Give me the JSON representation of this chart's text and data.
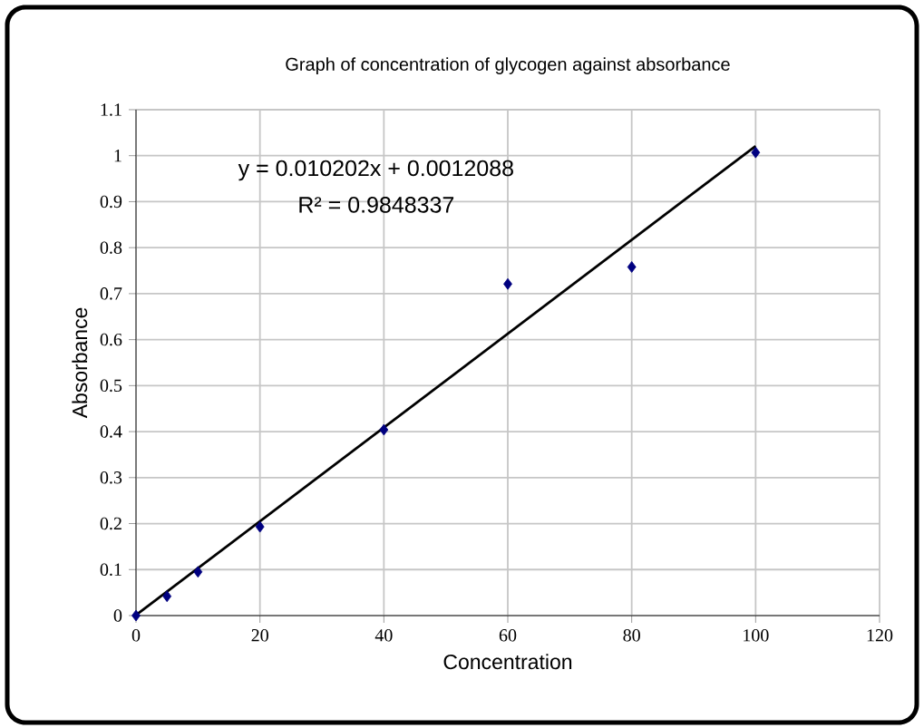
{
  "chart_data": {
    "type": "scatter",
    "title": "Graph of concentration of glycogen against absorbance",
    "xlabel": "Concentration",
    "ylabel": "Absorbance",
    "annotations": [
      "y = 0.010202x + 0.0012088",
      "R² = 0.9848337"
    ],
    "x": [
      0,
      5,
      10,
      20,
      40,
      60,
      80,
      100
    ],
    "series": [
      {
        "type": "scatter",
        "color": "#000080",
        "marker": "diamond",
        "values": [
          0,
          0.042,
          0.095,
          0.193,
          0.404,
          0.721,
          0.758,
          1.007
        ]
      },
      {
        "type": "line",
        "color": "#000000",
        "marker": "none",
        "x": [
          0,
          100
        ],
        "values": [
          0.001,
          1.021
        ]
      }
    ],
    "xlim": [
      0,
      120
    ],
    "xticks": [
      0,
      20,
      40,
      60,
      80,
      100,
      120
    ],
    "ylim": [
      0,
      1.1
    ],
    "yticks": [
      0,
      0.1,
      0.2,
      0.3,
      0.4,
      0.5,
      0.6,
      0.7,
      0.8,
      0.9,
      1,
      1.1
    ],
    "grid": true
  }
}
